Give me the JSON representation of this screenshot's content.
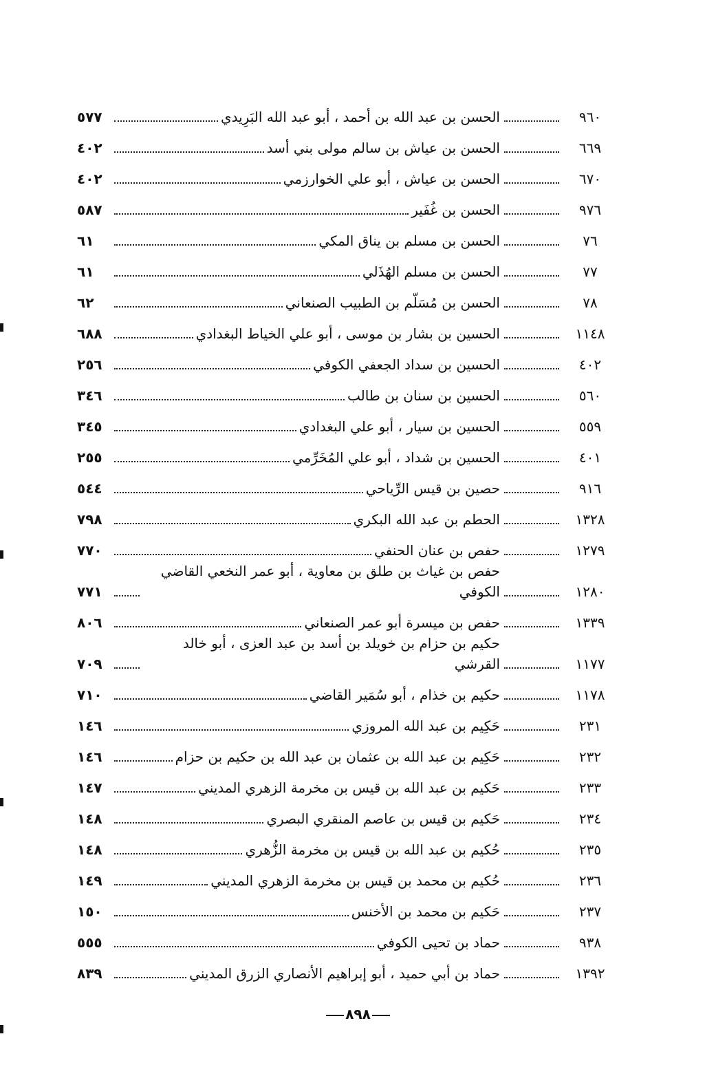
{
  "entries": [
    {
      "number": "٩٦٠",
      "name": "الحسن بن عبد الله بن أحمد ، أبو عبد الله البَرِيدي",
      "page": "٥٧٧"
    },
    {
      "number": "٦٦٩",
      "name": "الحسن بن عياش بن سالم مولى بني أسد",
      "page": "٤٠٢"
    },
    {
      "number": "٦٧٠",
      "name": "الحسن بن عياش ، أبو علي الخوارزمي",
      "page": "٤٠٢"
    },
    {
      "number": "٩٧٦",
      "name": "الحسن بن غُفَير",
      "page": "٥٨٧"
    },
    {
      "number": "٧٦",
      "name": "الحسن بن مسلم بن يناق المكي",
      "page": "٦١"
    },
    {
      "number": "٧٧",
      "name": "الحسن بن مسلم الهُذَلي",
      "page": "٦١"
    },
    {
      "number": "٧٨",
      "name": "الحسن بن مُسَلّم بن الطبيب الصنعاني",
      "page": "٦٢"
    },
    {
      "number": "١١٤٨",
      "name": "الحسين بن بشار بن موسى ، أبو علي الخياط البغدادي",
      "page": "٦٨٨"
    },
    {
      "number": "٤٠٢",
      "name": "الحسين بن سداد الجعفي الكوفي",
      "page": "٢٥٦"
    },
    {
      "number": "٥٦٠",
      "name": "الحسين بن سنان بن طالب",
      "page": "٣٤٦"
    },
    {
      "number": "٥٥٩",
      "name": "الحسين بن سيار ، أبو علي البغدادي",
      "page": "٣٤٥"
    },
    {
      "number": "٤٠١",
      "name": "الحسين بن شداد ، أبو علي المُخَرِّمي",
      "page": "٢٥٥"
    },
    {
      "number": "٩١٦",
      "name": "حصين بن قيس الرِّياحي",
      "page": "٥٤٤"
    },
    {
      "number": "١٣٢٨",
      "name": "الحطم بن عبد الله البكري",
      "page": "٧٩٨"
    },
    {
      "number": "١٢٧٩",
      "name": "حفص بن عنان الحنفي",
      "page": "٧٧٠"
    },
    {
      "number": "١٢٨٠",
      "name": "حفص بن غياث بن طلق بن معاوية ، أبو عمر النخعي القاضي الكوفي",
      "page": "٧٧١"
    },
    {
      "number": "١٣٣٩",
      "name": "حفص بن ميسرة أبو عمر الصنعاني",
      "page": "٨٠٦"
    },
    {
      "number": "١١٧٧",
      "name": "حكيم بن حزام بن خويلد بن أسد بن عبد العزى ، أبو خالد القرشي",
      "page": "٧٠٩"
    },
    {
      "number": "١١٧٨",
      "name": "حكيم بن خذام ، أبو سُمَير القاضي",
      "page": "٧١٠"
    },
    {
      "number": "٢٣١",
      "name": "حَكِيم بن عبد الله المروزي",
      "page": "١٤٦"
    },
    {
      "number": "٢٣٢",
      "name": "حَكِيم بن عبد الله بن عثمان بن عبد الله بن حكيم بن حزام",
      "page": "١٤٦"
    },
    {
      "number": "٢٣٣",
      "name": "حَكيم بن عبد الله بن قيس بن مخرمة الزهري المديني",
      "page": "١٤٧"
    },
    {
      "number": "٢٣٤",
      "name": "حَكيم بن قيس بن عاصم المنقري البصري",
      "page": "١٤٨"
    },
    {
      "number": "٢٣٥",
      "name": "حُكيم بن عبد الله بن قيس بن مخرمة الزُّهري",
      "page": "١٤٨"
    },
    {
      "number": "٢٣٦",
      "name": "حُكيم بن محمد بن قيس بن مخرمة الزهري المديني",
      "page": "١٤٩"
    },
    {
      "number": "٢٣٧",
      "name": "حَكيم بن محمد بن الأخنس",
      "page": "١٥٠"
    },
    {
      "number": "٩٣٨",
      "name": "حماد بن تحيى الكوفي",
      "page": "٥٥٥"
    },
    {
      "number": "١٣٩٢",
      "name": "حماد بن أبي حميد ، أبو إبراهيم الأنصاري الزرق المديني",
      "page": "٨٣٩"
    }
  ],
  "footer": {
    "page_number": "٨٩٨"
  }
}
